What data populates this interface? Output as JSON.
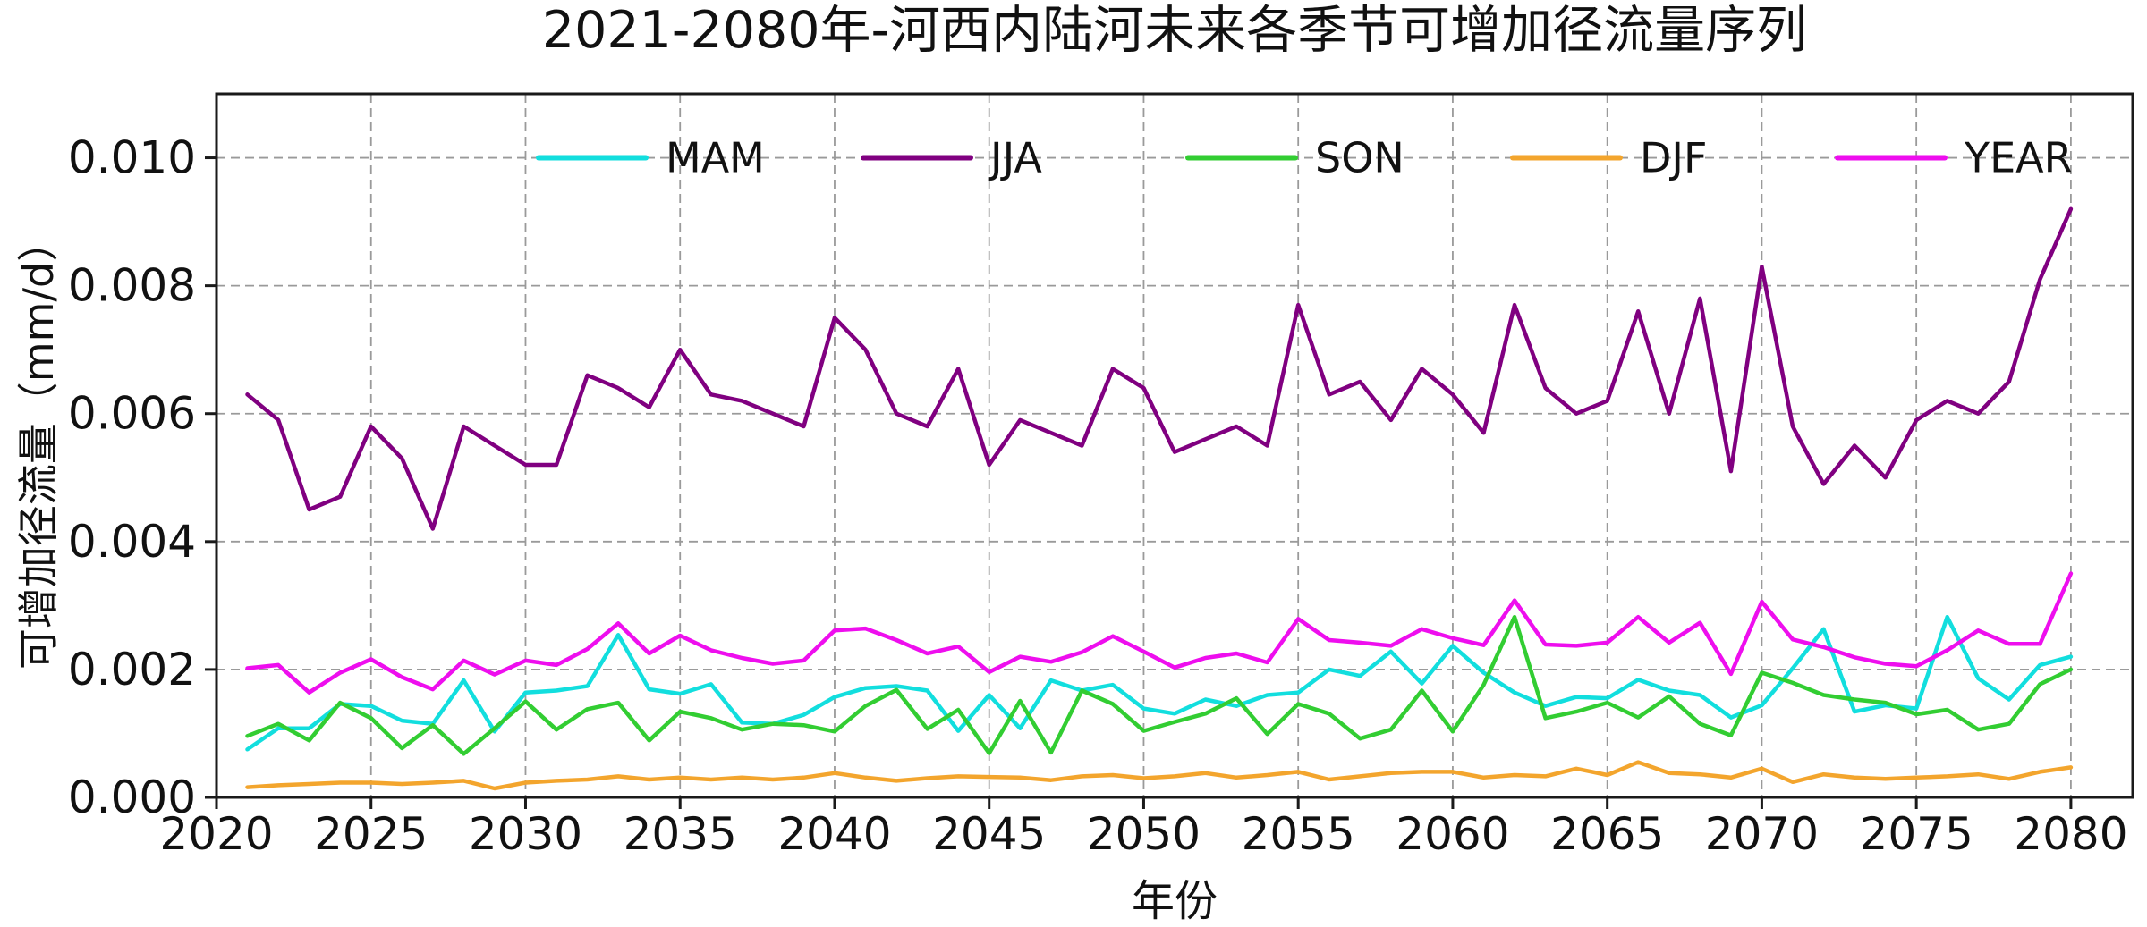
{
  "chart_data": {
    "type": "line",
    "title": "2021-2080年-河西内陆河未来各季节可增加径流量序列",
    "xlabel": "年份",
    "ylabel": "可增加径流量（mm/d）",
    "xlim": [
      2020,
      2082
    ],
    "ylim": [
      0,
      0.011
    ],
    "grid": true,
    "legend_position": "top-inside-horizontal",
    "xticks": [
      2020,
      2025,
      2030,
      2035,
      2040,
      2045,
      2050,
      2055,
      2060,
      2065,
      2070,
      2075,
      2080
    ],
    "xtick_labels": [
      "2020",
      "2025",
      "2030",
      "2035",
      "2040",
      "2045",
      "2050",
      "2055",
      "2060",
      "2065",
      "2070",
      "2075",
      "2080"
    ],
    "yticks": [
      0,
      0.002,
      0.004,
      0.006,
      0.008,
      0.01
    ],
    "ytick_labels": [
      "0.000",
      "0.002",
      "0.004",
      "0.006",
      "0.008",
      "0.010"
    ],
    "x": [
      2021,
      2022,
      2023,
      2024,
      2025,
      2026,
      2027,
      2028,
      2029,
      2030,
      2031,
      2032,
      2033,
      2034,
      2035,
      2036,
      2037,
      2038,
      2039,
      2040,
      2041,
      2042,
      2043,
      2044,
      2045,
      2046,
      2047,
      2048,
      2049,
      2050,
      2051,
      2052,
      2053,
      2054,
      2055,
      2056,
      2057,
      2058,
      2059,
      2060,
      2061,
      2062,
      2063,
      2064,
      2065,
      2066,
      2067,
      2068,
      2069,
      2070,
      2071,
      2072,
      2073,
      2074,
      2075,
      2076,
      2077,
      2078,
      2079,
      2080
    ],
    "series": [
      {
        "name": "MAM",
        "color": "#12dede",
        "values": [
          0.00075,
          0.00108,
          0.00108,
          0.00146,
          0.00143,
          0.0012,
          0.00115,
          0.00183,
          0.00103,
          0.00164,
          0.00167,
          0.00174,
          0.00254,
          0.00169,
          0.00162,
          0.00177,
          0.00117,
          0.00115,
          0.00129,
          0.00157,
          0.00171,
          0.00174,
          0.00167,
          0.00104,
          0.0016,
          0.00108,
          0.00183,
          0.00167,
          0.00176,
          0.00139,
          0.00131,
          0.00153,
          0.00143,
          0.0016,
          0.00164,
          0.002,
          0.0019,
          0.00228,
          0.00178,
          0.00237,
          0.00195,
          0.00164,
          0.00143,
          0.00157,
          0.00155,
          0.00184,
          0.00167,
          0.0016,
          0.00125,
          0.00144,
          0.00202,
          0.00263,
          0.00134,
          0.00144,
          0.00139,
          0.00282,
          0.00186,
          0.00153,
          0.00207,
          0.0022
        ]
      },
      {
        "name": "JJA",
        "color": "#800080",
        "values": [
          0.0063,
          0.0059,
          0.0045,
          0.0047,
          0.0058,
          0.0053,
          0.0042,
          0.0058,
          0.0055,
          0.0052,
          0.0052,
          0.0066,
          0.0064,
          0.0061,
          0.007,
          0.0063,
          0.0062,
          0.006,
          0.0058,
          0.0075,
          0.007,
          0.006,
          0.0058,
          0.0067,
          0.0052,
          0.0059,
          0.0057,
          0.0055,
          0.0067,
          0.0064,
          0.0054,
          0.0056,
          0.0058,
          0.0055,
          0.0077,
          0.0063,
          0.0065,
          0.0059,
          0.0067,
          0.0063,
          0.0057,
          0.0077,
          0.0064,
          0.006,
          0.0062,
          0.0076,
          0.006,
          0.0078,
          0.0051,
          0.0083,
          0.0058,
          0.0049,
          0.0055,
          0.005,
          0.0059,
          0.0062,
          0.006,
          0.0065,
          0.0081,
          0.0092
        ]
      },
      {
        "name": "SON",
        "color": "#32cd32",
        "values": [
          0.00096,
          0.00115,
          0.00089,
          0.00148,
          0.00124,
          0.00077,
          0.00113,
          0.00068,
          0.00108,
          0.0015,
          0.00106,
          0.00138,
          0.00148,
          0.00089,
          0.00134,
          0.00124,
          0.00106,
          0.00115,
          0.00113,
          0.00103,
          0.00143,
          0.00168,
          0.00107,
          0.00137,
          0.00069,
          0.00151,
          0.0007,
          0.00167,
          0.00146,
          0.00104,
          0.00118,
          0.00131,
          0.00155,
          0.00099,
          0.00146,
          0.00131,
          0.00092,
          0.00106,
          0.00167,
          0.00103,
          0.00176,
          0.00282,
          0.00124,
          0.00134,
          0.00148,
          0.00125,
          0.00158,
          0.00115,
          0.00097,
          0.00195,
          0.00179,
          0.0016,
          0.00153,
          0.00148,
          0.0013,
          0.00137,
          0.00106,
          0.00115,
          0.00177,
          0.002
        ]
      },
      {
        "name": "DJF",
        "color": "#f3a52d",
        "values": [
          0.00016,
          0.00019,
          0.00021,
          0.00023,
          0.00023,
          0.00021,
          0.00023,
          0.00026,
          0.00014,
          0.00023,
          0.00026,
          0.00028,
          0.00033,
          0.00028,
          0.00031,
          0.00028,
          0.00031,
          0.00028,
          0.00031,
          0.00038,
          0.00031,
          0.00026,
          0.0003,
          0.00033,
          0.00032,
          0.00031,
          0.00027,
          0.00033,
          0.00035,
          0.0003,
          0.00033,
          0.00038,
          0.00031,
          0.00035,
          0.0004,
          0.00028,
          0.00033,
          0.00038,
          0.0004,
          0.0004,
          0.00031,
          0.00035,
          0.00033,
          0.00045,
          0.00035,
          0.00055,
          0.00038,
          0.00036,
          0.00031,
          0.00045,
          0.00024,
          0.00036,
          0.00031,
          0.00029,
          0.00031,
          0.00033,
          0.00036,
          0.00029,
          0.0004,
          0.00047
        ]
      },
      {
        "name": "YEAR",
        "color": "#ee0eee",
        "values": [
          0.00202,
          0.00207,
          0.00164,
          0.00195,
          0.00216,
          0.00188,
          0.00169,
          0.00214,
          0.00192,
          0.00214,
          0.00207,
          0.00232,
          0.00272,
          0.00225,
          0.00253,
          0.0023,
          0.00218,
          0.00209,
          0.00214,
          0.00261,
          0.00264,
          0.00246,
          0.00225,
          0.00236,
          0.00196,
          0.0022,
          0.00212,
          0.00227,
          0.00252,
          0.00228,
          0.00203,
          0.00218,
          0.00225,
          0.00211,
          0.00279,
          0.00246,
          0.00242,
          0.00237,
          0.00263,
          0.00249,
          0.00238,
          0.00308,
          0.00239,
          0.00237,
          0.00242,
          0.00282,
          0.00242,
          0.00273,
          0.00193,
          0.00306,
          0.00247,
          0.00235,
          0.00219,
          0.00209,
          0.00205,
          0.0023,
          0.00261,
          0.0024,
          0.0024,
          0.0035
        ]
      }
    ]
  }
}
